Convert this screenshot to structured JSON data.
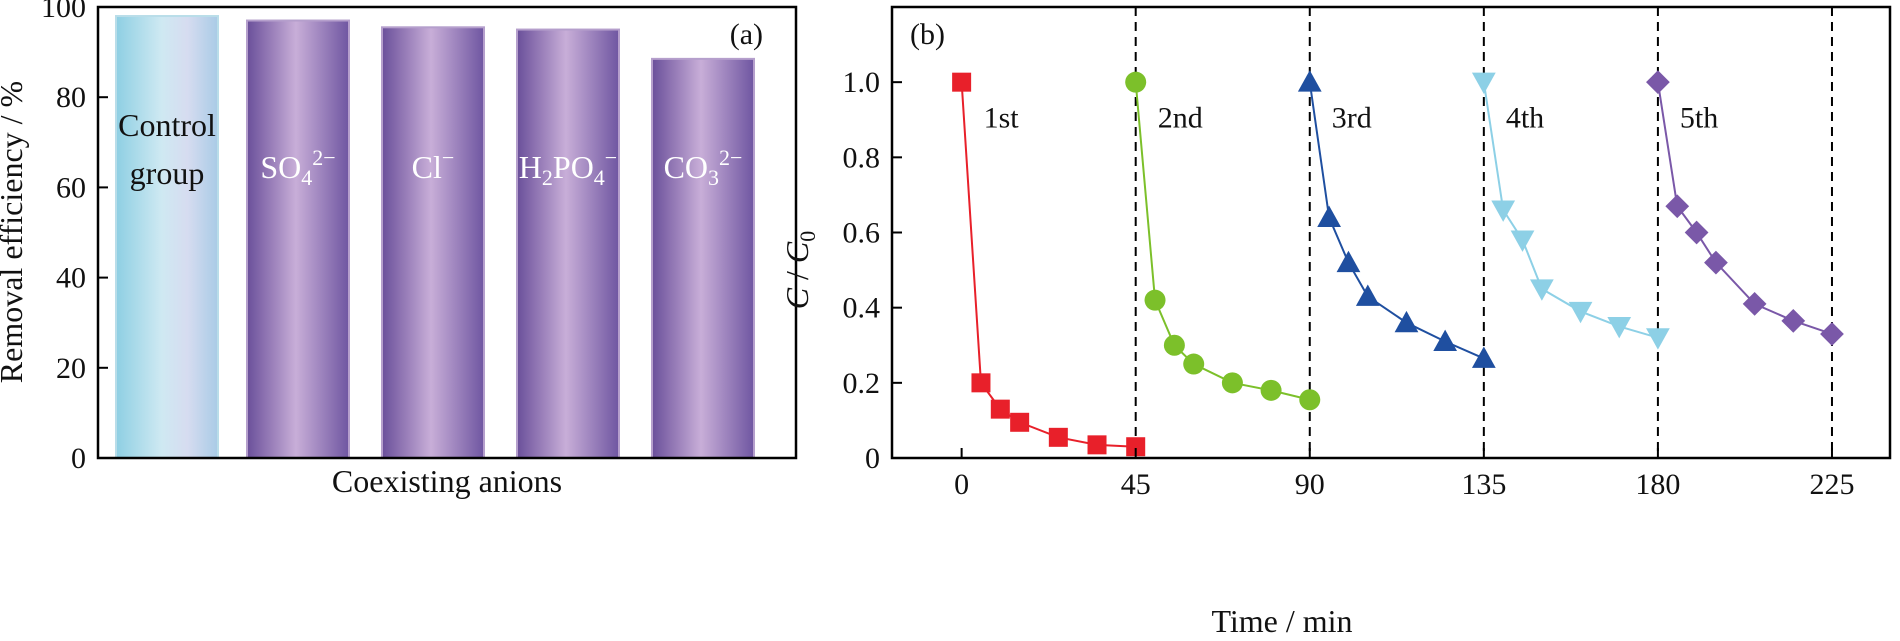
{
  "chart_data": [
    {
      "type": "bar",
      "panel_label": "(a)",
      "xlabel": "Coexisting anions",
      "ylabel": "Removal efficiency / %",
      "ylim": [
        0,
        100
      ],
      "yticks": [
        0,
        20,
        40,
        60,
        80,
        100
      ],
      "grid": false,
      "categories": [
        {
          "lines": [
            "Control",
            "group"
          ],
          "value": 98,
          "color": "#a9d8e8"
        },
        {
          "label": "SO",
          "sub": "4",
          "sup": "2−",
          "value": 97,
          "color": "#8c6fae"
        },
        {
          "label": "Cl",
          "sup": "−",
          "value": 95.5,
          "color": "#8c6fae"
        },
        {
          "label": "H",
          "sub": "2",
          "label2": "PO",
          "sub2": "4",
          "sup": "−",
          "value": 95,
          "color": "#8c6fae"
        },
        {
          "label": "CO",
          "sub": "3",
          "sup": "2−",
          "value": 88.5,
          "color": "#8c6fae"
        }
      ]
    },
    {
      "type": "line",
      "panel_label": "(b)",
      "xlabel": "Time / min",
      "ylabel": {
        "main": "C",
        "sep": " / ",
        "main2": "C",
        "sub": "0"
      },
      "xlim": [
        -18,
        240
      ],
      "ylim": [
        0,
        1.2
      ],
      "xticks": [
        0,
        45,
        90,
        135,
        180,
        225
      ],
      "yticks": [
        "0",
        "0.2",
        "0.4",
        "0.6",
        "0.8",
        "1.0"
      ],
      "ytick_values": [
        0,
        0.2,
        0.4,
        0.6,
        0.8,
        1.0
      ],
      "cycle_boundaries": [
        45,
        90,
        135,
        180,
        225
      ],
      "grid": false,
      "series": [
        {
          "label": "1st",
          "color": "#e8202a",
          "marker": "square",
          "x": [
            0,
            5,
            10,
            15,
            25,
            35,
            45
          ],
          "y": [
            1.0,
            0.2,
            0.13,
            0.095,
            0.055,
            0.035,
            0.03
          ]
        },
        {
          "label": "2nd",
          "color": "#7cc02a",
          "marker": "circle",
          "x": [
            45,
            50,
            55,
            60,
            70,
            80,
            90
          ],
          "y": [
            1.0,
            0.42,
            0.3,
            0.25,
            0.2,
            0.18,
            0.155
          ]
        },
        {
          "label": "3rd",
          "color": "#1f4fa0",
          "marker": "triangle-up",
          "x": [
            90,
            95,
            100,
            105,
            115,
            125,
            135
          ],
          "y": [
            1.0,
            0.64,
            0.52,
            0.43,
            0.36,
            0.31,
            0.265
          ]
        },
        {
          "label": "4th",
          "color": "#8dd0e6",
          "marker": "triangle-down",
          "x": [
            135,
            140,
            145,
            150,
            160,
            170,
            180
          ],
          "y": [
            1.0,
            0.66,
            0.58,
            0.45,
            0.39,
            0.35,
            0.32
          ]
        },
        {
          "label": "5th",
          "color": "#7a58a8",
          "marker": "diamond",
          "x": [
            180,
            185,
            190,
            195,
            205,
            215,
            225
          ],
          "y": [
            1.0,
            0.67,
            0.6,
            0.52,
            0.41,
            0.365,
            0.33
          ]
        }
      ]
    }
  ]
}
